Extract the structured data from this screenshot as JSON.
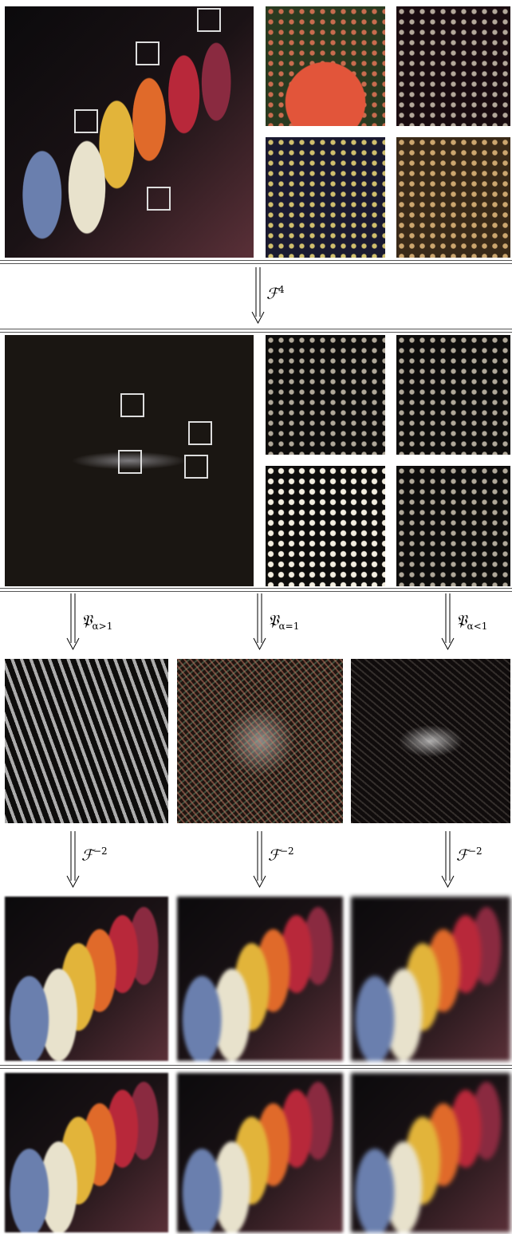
{
  "operators": {
    "fourier_4d": {
      "symbol": "ℱ",
      "sup": "4"
    },
    "projections": [
      {
        "symbol": "𝔓",
        "sub": "α>1"
      },
      {
        "symbol": "𝔓",
        "sub": "α=1"
      },
      {
        "symbol": "𝔓",
        "sub": "α<1"
      }
    ],
    "inverse": [
      {
        "symbol": "ℱ",
        "sup": "−2"
      },
      {
        "symbol": "ℱ",
        "sup": "−2"
      },
      {
        "symbol": "ℱ",
        "sup": "−2"
      }
    ]
  }
}
